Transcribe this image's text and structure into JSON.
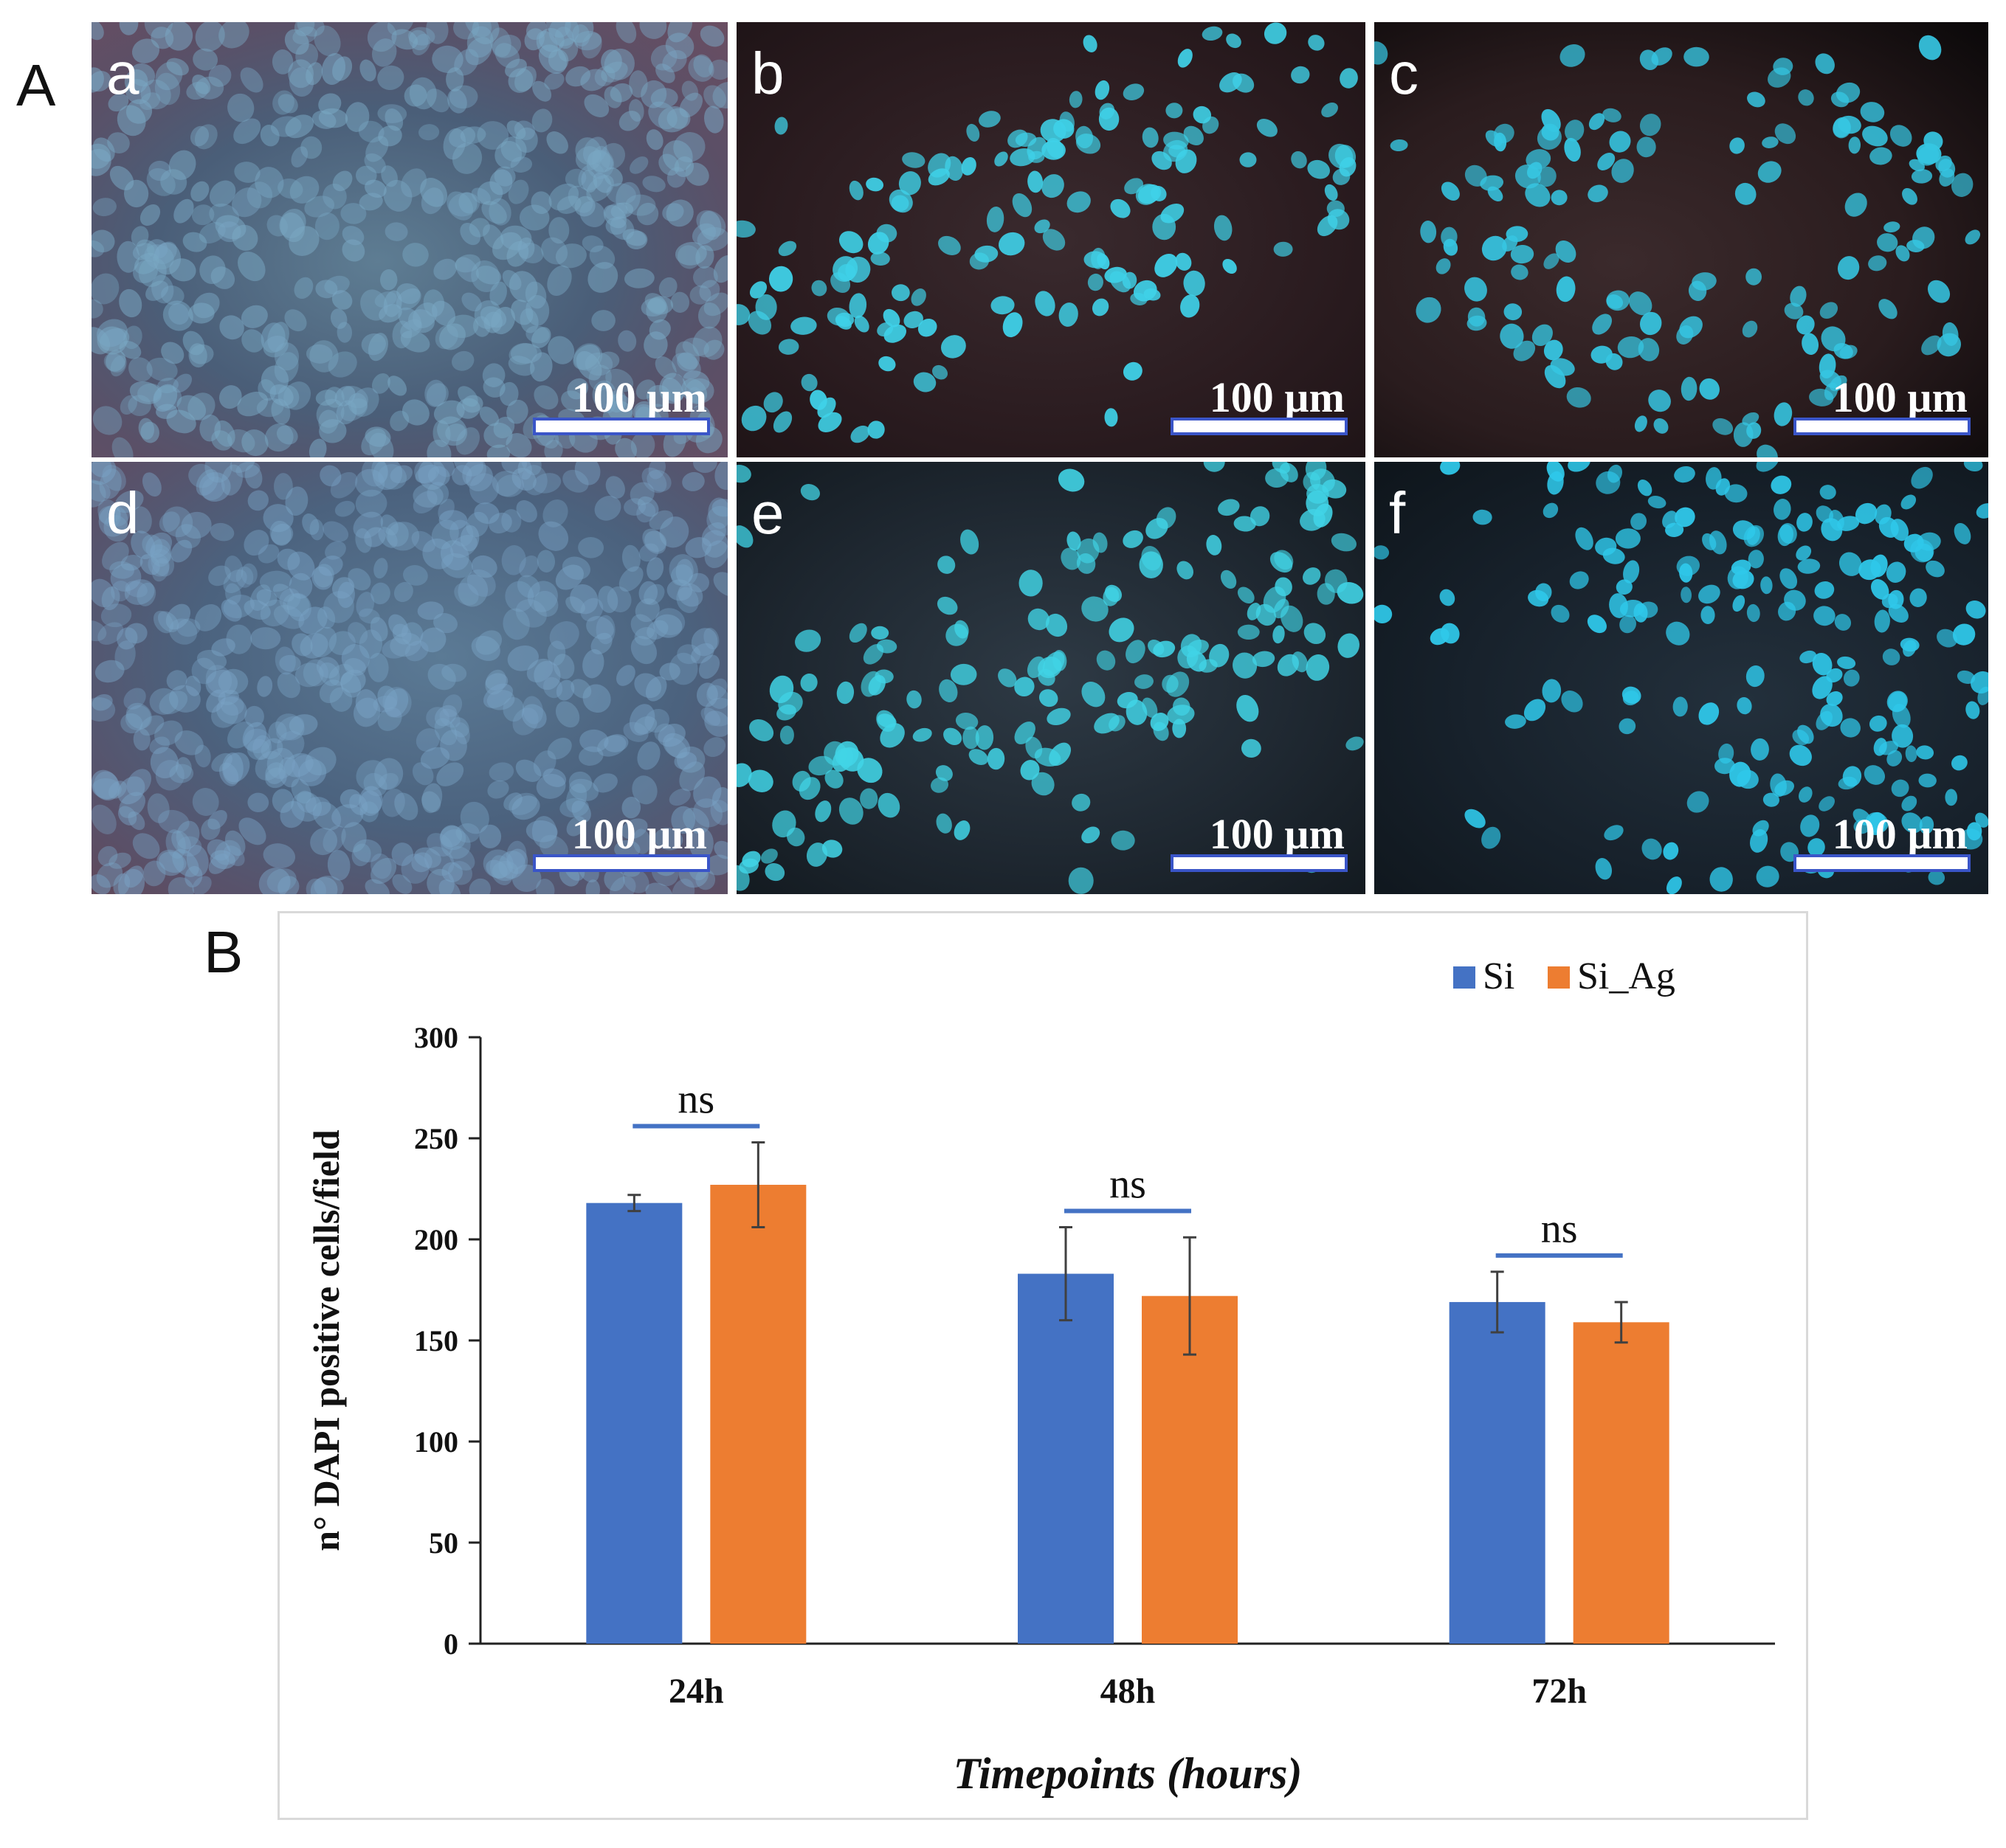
{
  "panel_labels": {
    "a": "A",
    "b": "B"
  },
  "micrographs": [
    {
      "label": "a",
      "scale_text": "100 µm"
    },
    {
      "label": "b",
      "scale_text": "100 µm"
    },
    {
      "label": "c",
      "scale_text": "100 µm"
    },
    {
      "label": "d",
      "scale_text": "100 µm"
    },
    {
      "label": "e",
      "scale_text": "100 µm"
    },
    {
      "label": "f",
      "scale_text": "100 µm"
    }
  ],
  "colors": {
    "si": "#4472c4",
    "si_ag": "#ed7d31",
    "sig_line": "#4472c4",
    "error_bar": "#404040"
  },
  "chart_data": {
    "type": "bar",
    "categories": [
      "24h",
      "48h",
      "72h"
    ],
    "series": [
      {
        "name": "Si",
        "values": [
          218,
          183,
          169
        ],
        "errors": [
          4,
          23,
          15
        ]
      },
      {
        "name": "Si_Ag",
        "values": [
          227,
          172,
          159
        ],
        "errors": [
          21,
          29,
          10
        ]
      }
    ],
    "significance": [
      "ns",
      "ns",
      "ns"
    ],
    "xlabel": "Timepoints (hours)",
    "ylabel": "n° DAPI positive cells/field",
    "ylim": [
      0,
      300
    ],
    "yticks": [
      "0",
      "50",
      "100",
      "150",
      "200",
      "250",
      "300"
    ],
    "legend_position": "top-right",
    "grid": false
  }
}
